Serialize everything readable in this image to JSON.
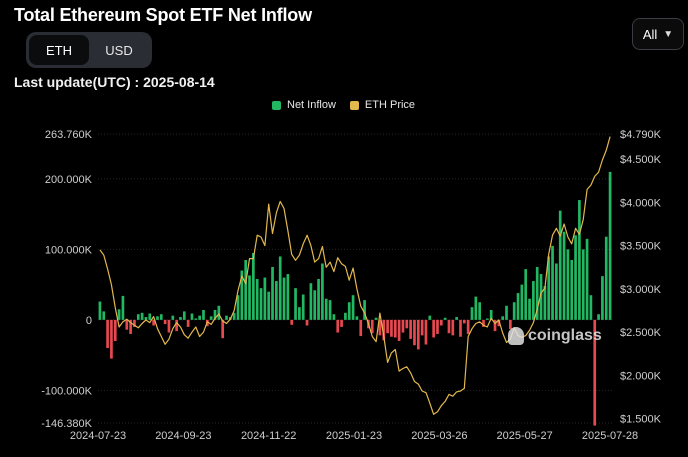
{
  "header": {
    "title": "Total Ethereum Spot ETF Net Inflow",
    "toggle": {
      "options": [
        "ETH",
        "USD"
      ],
      "active": "ETH"
    },
    "range": {
      "selected": "All"
    },
    "last_update": "Last update(UTC) : 2025-08-14",
    "watermark": "coinglass"
  },
  "colors": {
    "inflow_positive": "#22b863",
    "inflow_negative": "#e8484f",
    "price": "#e3b84c",
    "grid": "#262626",
    "axis_text": "#cfcfcf"
  },
  "icons": {
    "range_caret": "chevron-down-icon",
    "watermark_logo": "coinglass-logo-icon"
  },
  "chart_data": {
    "type": "bar+line",
    "legend": [
      "Net Inflow",
      "ETH Price"
    ],
    "legend_position": "top-center",
    "grid": true,
    "x_ticks": [
      "2024-07-23",
      "2024-09-23",
      "2024-11-22",
      "2025-01-23",
      "2025-03-26",
      "2025-05-27",
      "2025-07-28"
    ],
    "y_left": {
      "ticks": [
        "263.760K",
        "200.000K",
        "100.000K",
        "0",
        "-100.000K",
        "-146.380K"
      ],
      "tick_values": [
        263760,
        200000,
        100000,
        0,
        -100000,
        -146380
      ],
      "range": [
        -146380,
        263760
      ]
    },
    "y_right": {
      "ticks": [
        "$4.790K",
        "$4.500K",
        "$4.000K",
        "$3.500K",
        "$3.000K",
        "$2.500K",
        "$2.000K",
        "$1.500K"
      ],
      "tick_values": [
        4790,
        4500,
        4000,
        3500,
        3000,
        2500,
        2000,
        1500
      ],
      "range": [
        1450,
        4790
      ]
    },
    "series": [
      {
        "name": "Net Inflow",
        "type": "bar",
        "unit": "ETH",
        "values": [
          26000,
          12000,
          -40000,
          -55000,
          -30000,
          15000,
          34000,
          -14000,
          -20000,
          -10000,
          8000,
          10000,
          4000,
          9000,
          -8000,
          5000,
          8000,
          -6000,
          -18000,
          6000,
          -16000,
          4000,
          12000,
          -10000,
          9000,
          2000,
          6000,
          14000,
          -9000,
          5000,
          14000,
          20000,
          -26000,
          6000,
          4000,
          10000,
          35000,
          70000,
          85000,
          63000,
          95000,
          58000,
          45000,
          60000,
          40000,
          75000,
          55000,
          90000,
          60000,
          65000,
          -7000,
          45000,
          18000,
          36000,
          -8000,
          52000,
          42000,
          58000,
          80000,
          30000,
          28000,
          8000,
          -18000,
          -10000,
          10000,
          25000,
          35000,
          5000,
          -23000,
          28000,
          -12000,
          -19000,
          3000,
          -22000,
          -29000,
          -19000,
          -24000,
          -25000,
          -30000,
          -18000,
          -12000,
          -27000,
          -36000,
          -42000,
          -22000,
          -35000,
          6000,
          -25000,
          -20000,
          -8000,
          3000,
          -19000,
          -22000,
          4000,
          -24000,
          -5000,
          -20000,
          18000,
          33000,
          25000,
          -10000,
          2000,
          14000,
          -16000,
          -9000,
          5000,
          20000,
          -13000,
          25000,
          38000,
          50000,
          72000,
          30000,
          55000,
          75000,
          65000,
          48000,
          90000,
          105000,
          80000,
          155000,
          125000,
          100000,
          85000,
          120000,
          170000,
          100000,
          115000,
          35000,
          -150000,
          8000,
          62000,
          118000,
          210000
        ]
      },
      {
        "name": "ETH Price",
        "type": "line",
        "unit": "USD",
        "values": [
          3450,
          3390,
          3230,
          3050,
          2780,
          2560,
          2620,
          2650,
          2610,
          2580,
          2550,
          2600,
          2640,
          2610,
          2680,
          2540,
          2450,
          2360,
          2420,
          2540,
          2610,
          2560,
          2470,
          2430,
          2500,
          2560,
          2450,
          2500,
          2620,
          2590,
          2660,
          2710,
          2630,
          2600,
          2650,
          2750,
          2980,
          3150,
          3060,
          3350,
          3350,
          3620,
          3600,
          3500,
          3980,
          3640,
          3880,
          4010,
          3930,
          3670,
          3400,
          3330,
          3390,
          3520,
          3620,
          3500,
          3310,
          3350,
          3490,
          3250,
          3310,
          3200,
          3360,
          3290,
          3260,
          3100,
          3240,
          3000,
          2800,
          2720,
          2600,
          2450,
          2390,
          2720,
          2450,
          2150,
          2260,
          2300,
          2050,
          2080,
          2100,
          2030,
          1930,
          1900,
          1820,
          1800,
          1680,
          1550,
          1580,
          1650,
          1700,
          1780,
          1760,
          1810,
          1820,
          1850,
          2450,
          2540,
          2600,
          2620,
          2580,
          2560,
          2660,
          2600,
          2640,
          2490,
          2380,
          2420,
          2550,
          2460,
          2440,
          2460,
          2520,
          2610,
          2760,
          2950,
          3010,
          3400,
          3620,
          3700,
          3610,
          3750,
          3600,
          3520,
          3700,
          3630,
          3800,
          4150,
          4200,
          4300,
          4350,
          4490,
          4600,
          4760
        ]
      }
    ]
  }
}
